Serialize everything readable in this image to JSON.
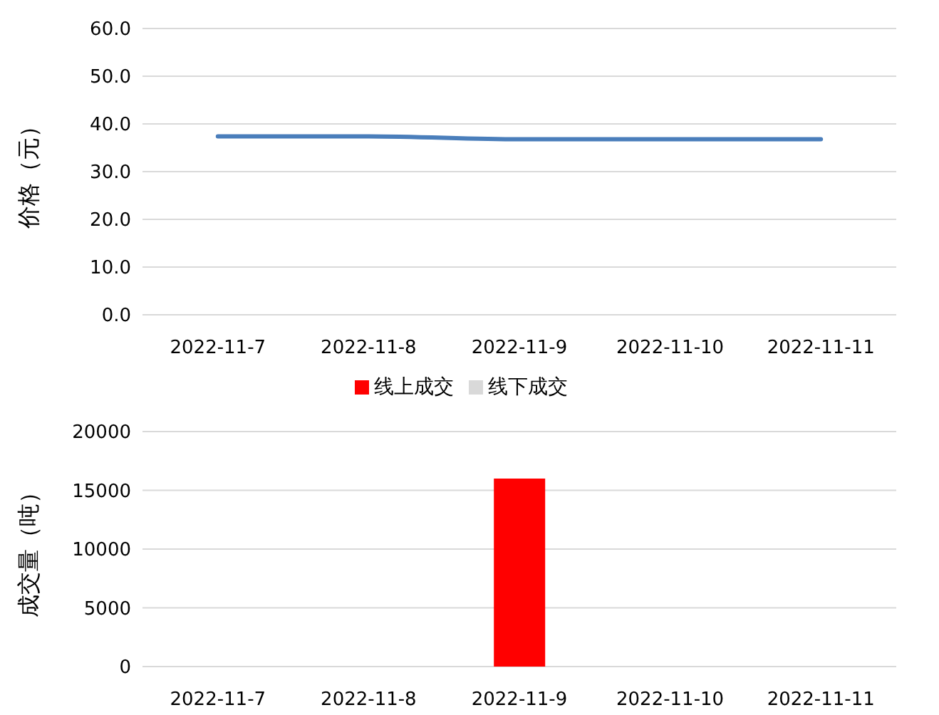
{
  "chart_data": [
    {
      "type": "line",
      "categories": [
        "2022-11-7",
        "2022-11-8",
        "2022-11-9",
        "2022-11-10",
        "2022-11-11"
      ],
      "ylabel": "价格（元）",
      "series": [
        {
          "color": "#4a7ebb",
          "values": [
            37.4,
            37.4,
            36.8,
            36.8,
            36.8
          ]
        }
      ],
      "ylim": [
        0,
        60
      ],
      "yticks": [
        {
          "value": 0,
          "label": "0.0"
        },
        {
          "value": 10,
          "label": "10.0"
        },
        {
          "value": 20,
          "label": "20.0"
        },
        {
          "value": 30,
          "label": "30.0"
        },
        {
          "value": 40,
          "label": "40.0"
        },
        {
          "value": 50,
          "label": "50.0"
        },
        {
          "value": 60,
          "label": "60.0"
        }
      ],
      "grid": "y",
      "marker": "none",
      "legend": false
    },
    {
      "type": "bar",
      "stacked": true,
      "categories": [
        "2022-11-7",
        "2022-11-8",
        "2022-11-9",
        "2022-11-10",
        "2022-11-11"
      ],
      "ylabel": "成交量（吨）",
      "series": [
        {
          "name": "线上成交",
          "color": "#ff0000",
          "values": [
            0,
            0,
            16000,
            0,
            0
          ]
        },
        {
          "name": "线下成交",
          "color": "#d9d9d9",
          "values": [
            0,
            0,
            0,
            0,
            0
          ]
        }
      ],
      "ylim": [
        0,
        20000
      ],
      "yticks": [
        0,
        5000,
        10000,
        15000,
        20000
      ],
      "grid": "y",
      "legend": "top"
    }
  ]
}
